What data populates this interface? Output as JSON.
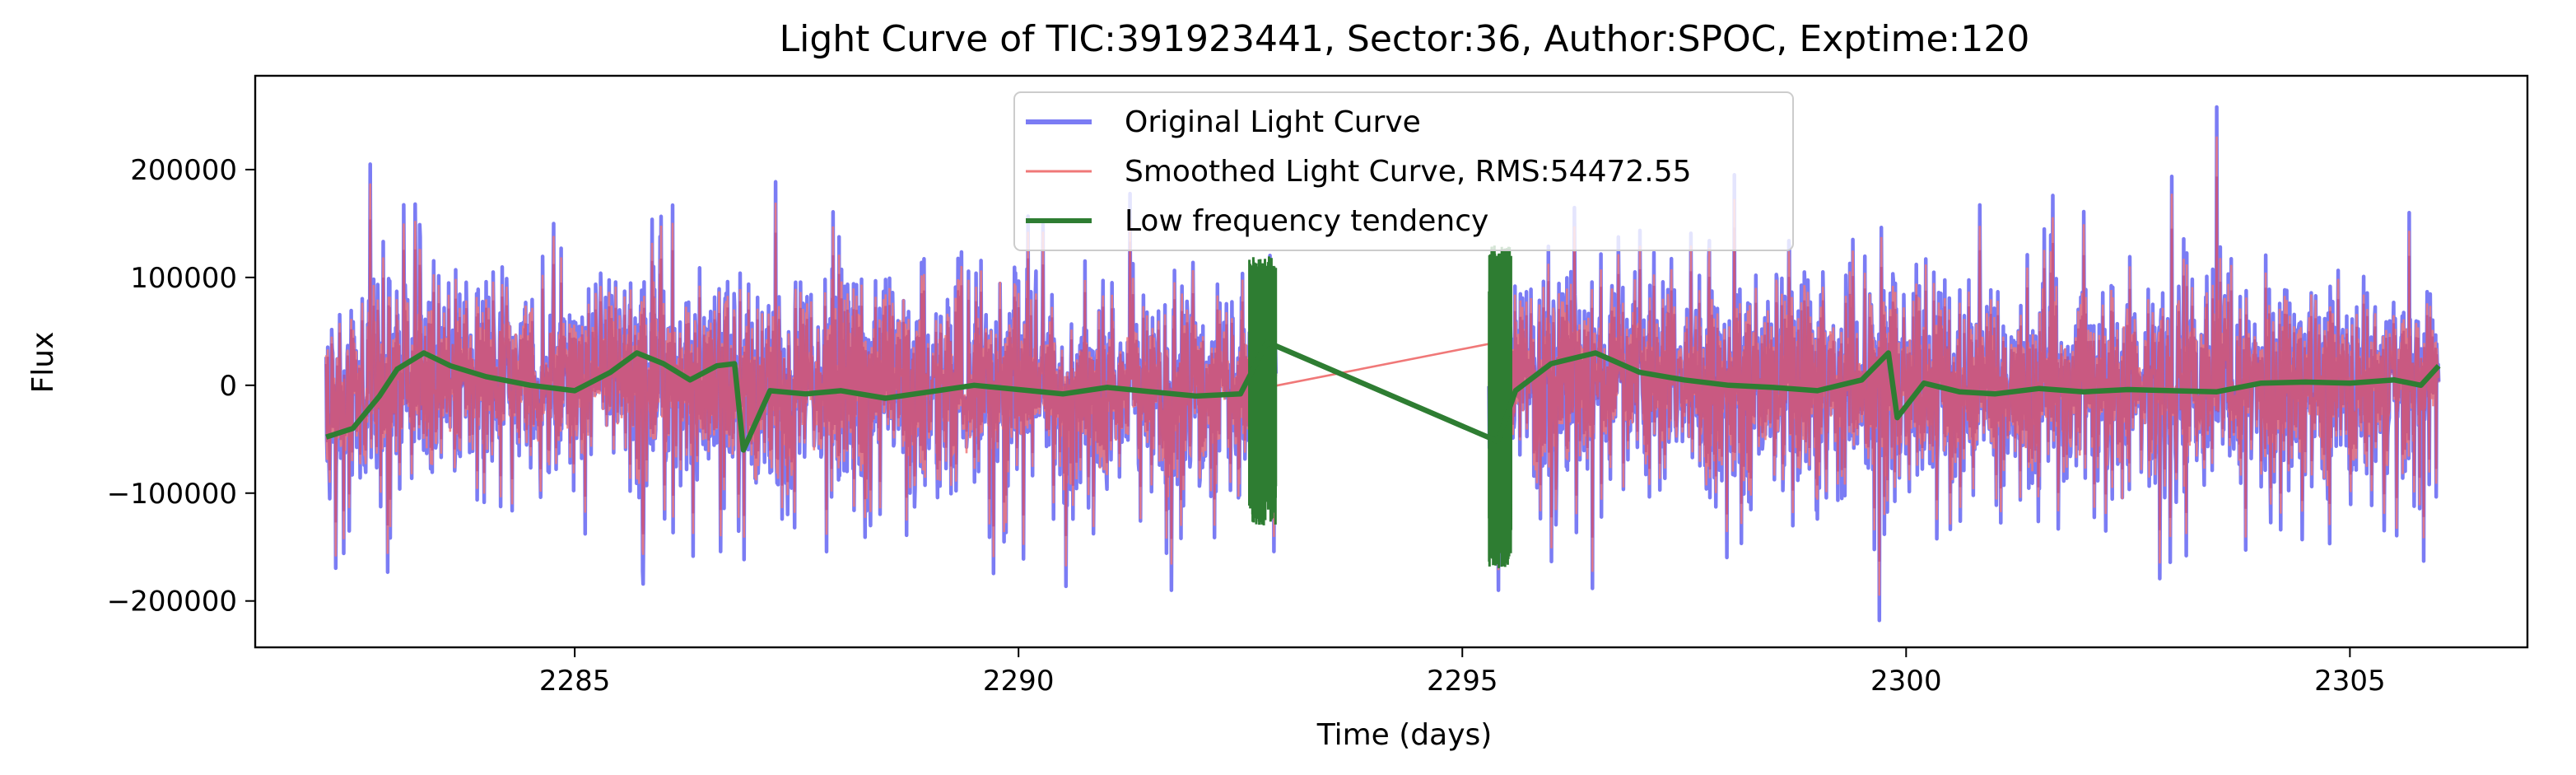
{
  "chart_data": {
    "type": "line",
    "title": "Light Curve of TIC:391923441, Sector:36, Author:SPOC, Exptime:120",
    "xlabel": "Time (days)",
    "ylabel": "Flux",
    "xlim": [
      2281.4,
      2307.0
    ],
    "ylim": [
      -243000,
      287000
    ],
    "x_ticks": [
      2285,
      2290,
      2295,
      2300,
      2305
    ],
    "y_ticks": [
      -200000,
      -100000,
      0,
      100000,
      200000
    ],
    "x_tick_labels": [
      "2285",
      "2290",
      "2295",
      "2300",
      "2305"
    ],
    "y_tick_labels": [
      "−200000",
      "−100000",
      "0",
      "100000",
      "200000"
    ],
    "grid": false,
    "legend_position": "top-center",
    "segments": [
      {
        "x_start": 2282.2,
        "x_end": 2292.9
      },
      {
        "x_start": 2295.3,
        "x_end": 2306.0
      }
    ],
    "series": [
      {
        "name": "Original Light Curve",
        "color": "#7b7cf4",
        "envelope": {
          "typical_range": [
            -120000,
            130000
          ],
          "max_spike": 258000,
          "max_spike_x": 2303.5,
          "min_spike": -218000,
          "min_spike_x": 2299.7
        }
      },
      {
        "name": "Smoothed Light Curve, RMS:54472.55",
        "color": "#f07878",
        "rms": 54472.55,
        "gap_bridge": {
          "x": [
            2292.8,
            2295.4
          ],
          "y": [
            -2000,
            40000
          ]
        }
      },
      {
        "name": "Low frequency tendency",
        "color": "#2e7d32",
        "x": [
          2282.2,
          2282.5,
          2282.8,
          2283.0,
          2283.3,
          2283.6,
          2284.0,
          2284.5,
          2285.0,
          2285.4,
          2285.7,
          2286.0,
          2286.3,
          2286.6,
          2286.8,
          2286.9,
          2287.2,
          2287.6,
          2288.0,
          2288.5,
          2289.0,
          2289.5,
          2290.0,
          2290.5,
          2291.0,
          2291.5,
          2292.0,
          2292.5,
          2292.8,
          2295.4,
          2295.6,
          2296.0,
          2296.5,
          2297.0,
          2297.5,
          2298.0,
          2298.5,
          2299.0,
          2299.5,
          2299.8,
          2299.9,
          2300.2,
          2300.6,
          2301.0,
          2301.5,
          2302.0,
          2302.5,
          2303.0,
          2303.5,
          2304.0,
          2304.5,
          2305.0,
          2305.5,
          2305.8,
          2306.0
        ],
        "y": [
          -48000,
          -40000,
          -10000,
          15000,
          30000,
          18000,
          8000,
          0,
          -5000,
          12000,
          30000,
          20000,
          5000,
          18000,
          20000,
          -60000,
          -5000,
          -8000,
          -5000,
          -12000,
          -6000,
          0,
          -4000,
          -8000,
          -2000,
          -6000,
          -10000,
          -8000,
          40000,
          -52000,
          -5000,
          20000,
          30000,
          12000,
          5000,
          0,
          -2000,
          -5000,
          5000,
          30000,
          -30000,
          2000,
          -6000,
          -8000,
          -3000,
          -6000,
          -4000,
          -5000,
          -6000,
          2000,
          3000,
          2000,
          5000,
          0,
          18000
        ],
        "burst_regions": [
          {
            "x": [
              2292.6,
              2292.9
            ],
            "y_range": [
              -130000,
              120000
            ]
          },
          {
            "x": [
              2295.3,
              2295.55
            ],
            "y_range": [
              -170000,
              130000
            ]
          }
        ]
      }
    ]
  }
}
